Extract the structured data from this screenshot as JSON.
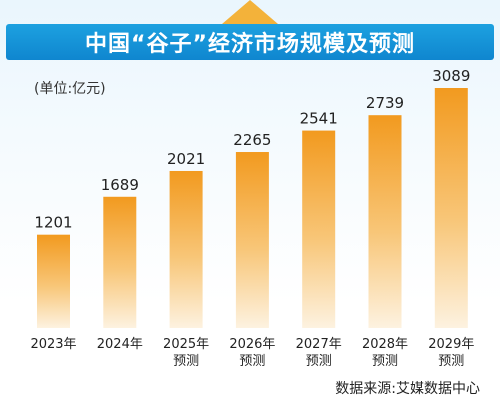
{
  "title": "中国“谷子”经济市场规模及预测",
  "unit": "(单位:亿元)",
  "source": "数据来源:艾媒数据中心",
  "colors": {
    "title_bg": "#1493d8",
    "bar_top": "#f29a1f",
    "bar_bottom": "#fdf2e0",
    "accent": "#f3b23a"
  },
  "chart_data": {
    "type": "bar",
    "categories": [
      "2023年",
      "2024年",
      "2025年\n预测",
      "2026年\n预测",
      "2027年\n预测",
      "2028年\n预测",
      "2029年\n预测"
    ],
    "values": [
      1201,
      1689,
      2021,
      2265,
      2541,
      2739,
      3089
    ],
    "data_labels": [
      "1201",
      "1689",
      "2021",
      "2265",
      "2541",
      "2739",
      "3089"
    ],
    "title": "中国“谷子”经济市场规模及预测",
    "ylabel": "(单位:亿元)",
    "xlabel": "",
    "grid": false,
    "legend": "none"
  }
}
